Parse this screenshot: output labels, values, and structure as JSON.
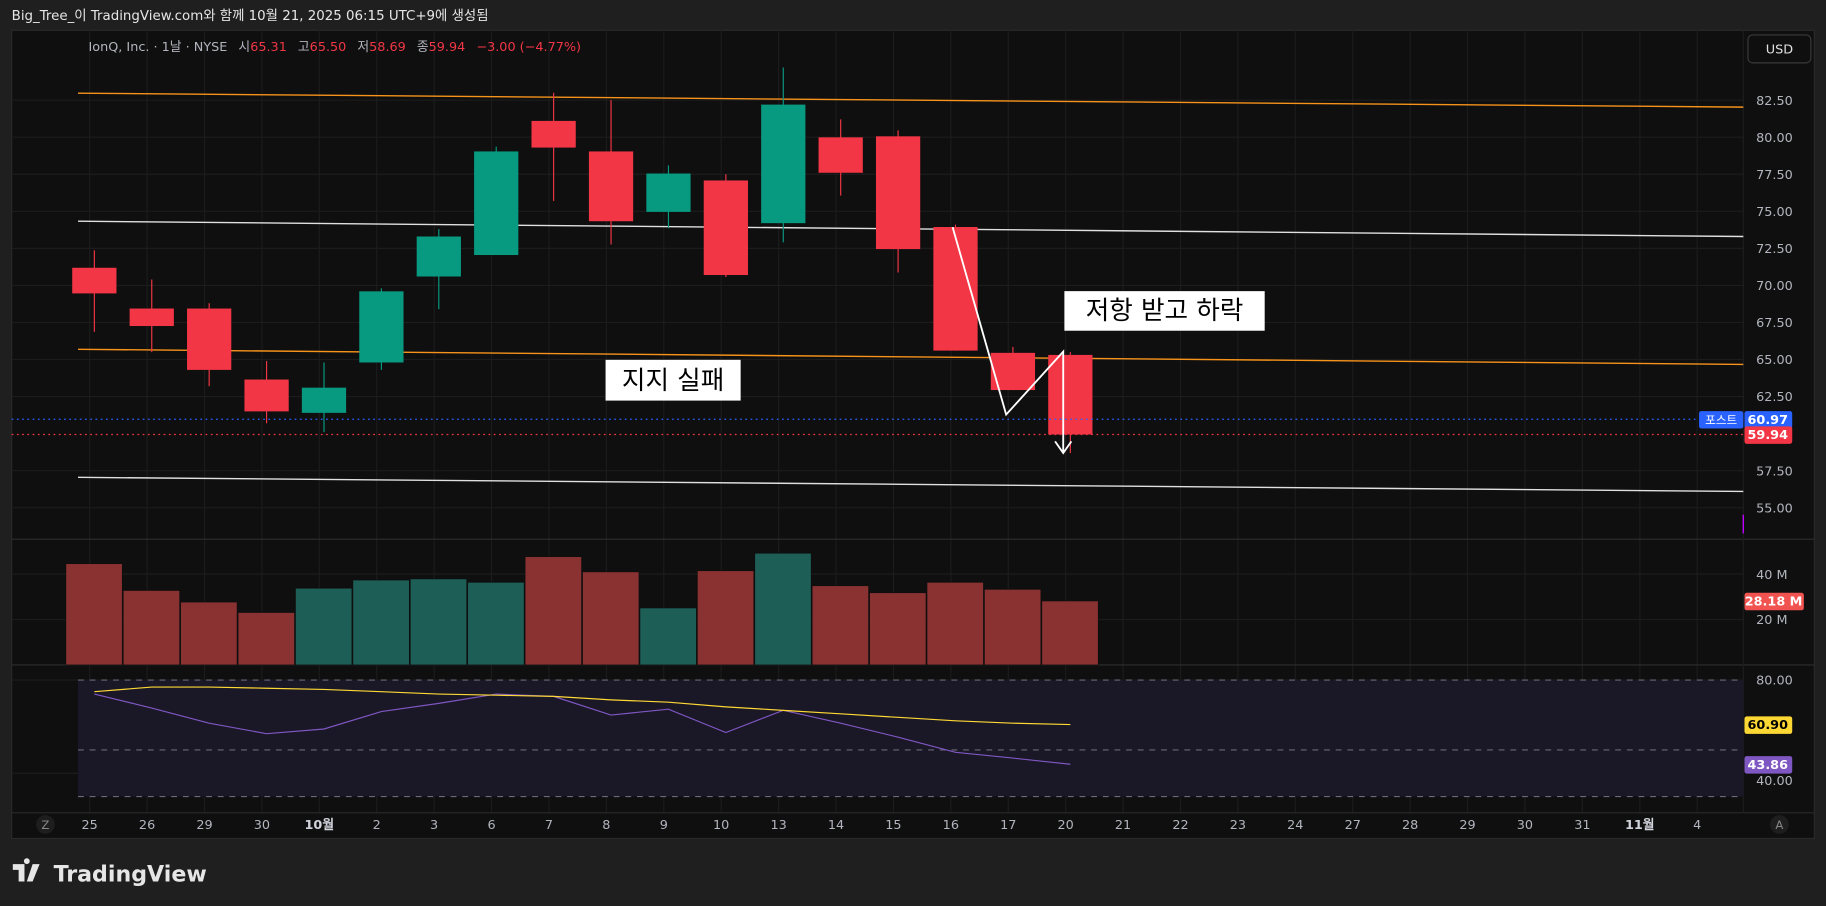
{
  "header": {
    "caption": "Big_Tree_이 TradingView.com와 함께 10월 21, 2025 06:15 UTC+9에 생성됨"
  },
  "legend": {
    "symbol": "IonQ, Inc. · 1날 · NYSE",
    "open_label": "시",
    "open": "65.31",
    "high_label": "고",
    "high": "65.50",
    "low_label": "저",
    "low": "58.69",
    "close_label": "종",
    "close": "59.94",
    "change": "−3.00 (−4.77%)"
  },
  "currency_button": "USD",
  "footer": {
    "logo_text": "TradingView"
  },
  "axis_buttons": {
    "left": "Z",
    "right": "A"
  },
  "colors": {
    "up": "#089981",
    "down": "#f23645",
    "orange_line": "#f7931a",
    "white_line": "#e0e0e0",
    "rsi": "#7e57c2",
    "rsi_ma": "#fdd835",
    "post": "#2962ff"
  },
  "chart_data": [
    {
      "type": "candlestick",
      "title": "",
      "x_tick_labels": [
        "25",
        "26",
        "29",
        "30",
        "10월",
        "2",
        "3",
        "6",
        "7",
        "8",
        "9",
        "10",
        "13",
        "14",
        "15",
        "16",
        "17",
        "20",
        "21",
        "22",
        "23",
        "24",
        "27",
        "28",
        "29",
        "30",
        "31",
        "11월",
        "4"
      ],
      "dates": [
        "25",
        "26",
        "29",
        "30",
        "10월",
        "2",
        "3",
        "6",
        "7",
        "8",
        "9",
        "10",
        "13",
        "14",
        "15",
        "16",
        "17",
        "20"
      ],
      "open": [
        71.19,
        68.44,
        68.44,
        63.65,
        61.4,
        64.8,
        70.6,
        72.05,
        81.1,
        79.04,
        74.96,
        77.08,
        74.2,
        79.99,
        80.06,
        73.94,
        65.45,
        65.31
      ],
      "high": [
        72.37,
        70.4,
        68.8,
        64.9,
        64.8,
        69.8,
        73.8,
        79.36,
        83.0,
        82.5,
        78.1,
        77.5,
        84.7,
        81.2,
        80.46,
        74.1,
        65.85,
        65.5
      ],
      "low": [
        66.87,
        65.5,
        63.2,
        60.7,
        60.1,
        64.3,
        68.4,
        72.05,
        75.7,
        72.76,
        73.86,
        70.56,
        72.9,
        76.06,
        70.87,
        65.6,
        62.94,
        58.69
      ],
      "close": [
        69.46,
        67.26,
        64.3,
        61.5,
        63.1,
        69.6,
        73.3,
        79.04,
        79.3,
        74.33,
        77.55,
        70.7,
        82.2,
        77.6,
        72.45,
        65.6,
        62.94,
        59.94
      ],
      "y_ticks": [
        82.5,
        80,
        77.5,
        75,
        72.5,
        70,
        67.5,
        65,
        62.5,
        57.5,
        55
      ],
      "ylim": [
        53.4,
        86.2
      ],
      "price_lines": [
        {
          "label": "포스트",
          "value": 60.97,
          "color": "#2962ff"
        },
        {
          "value": 59.94,
          "color": "#f23645"
        }
      ],
      "trend_lines": [
        {
          "color": "#f7931a",
          "from": 82.97,
          "to": 82.03
        },
        {
          "color": "#e0e0e0",
          "from": 74.33,
          "to": 73.3
        },
        {
          "color": "#f7931a",
          "from": 65.69,
          "to": 64.67
        },
        {
          "color": "#e0e0e0",
          "from": 57.05,
          "to": 56.1
        }
      ],
      "annotations": [
        "저항 받고 하락",
        "지지 실패"
      ]
    },
    {
      "type": "bar",
      "title": "",
      "unit": "M",
      "values": [
        44.6,
        32.8,
        27.7,
        23.1,
        33.8,
        37.4,
        37.9,
        36.4,
        47.7,
        41.0,
        25.1,
        41.5,
        49.2,
        34.9,
        31.8,
        36.4,
        33.3,
        28.18
      ],
      "y_ticks": [
        "40 M",
        "20 M"
      ],
      "last_label": "28.18 M"
    },
    {
      "type": "line",
      "title": "",
      "series": [
        {
          "values": [
            74,
            68,
            61.5,
            57,
            59,
            66.5,
            70,
            74,
            73,
            65,
            67.5,
            57.5,
            67,
            61.5,
            55.5,
            49,
            46.5,
            43.86
          ],
          "color": "#7e57c2",
          "last_label": "43.86"
        },
        {
          "values": [
            75,
            77,
            77,
            76.5,
            76,
            75,
            74,
            73.5,
            73,
            71.5,
            70.5,
            68.5,
            67,
            65.5,
            64,
            62.5,
            61.5,
            60.9
          ],
          "color": "#fdd835",
          "last_label": "60.90"
        }
      ],
      "y_ticks": [
        "80.00",
        "40.00"
      ],
      "bands": [
        80,
        50,
        30
      ]
    }
  ]
}
